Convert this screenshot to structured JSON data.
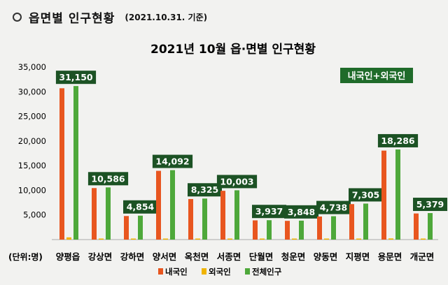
{
  "header": {
    "title": "읍면별 인구현황",
    "date": "(2021.10.31. 기준)"
  },
  "chart_data": {
    "type": "bar",
    "title": "2021년 10월 읍·면별 인구현황",
    "badge": "내국인+외국인",
    "unit_label": "(단위:명)",
    "categories": [
      "양평읍",
      "강상면",
      "강하면",
      "양서면",
      "옥천면",
      "서종면",
      "단월면",
      "청운면",
      "양동면",
      "지평면",
      "용문면",
      "개군면"
    ],
    "series": [
      {
        "name": "내국인",
        "color": "#e8561f",
        "values": [
          30700,
          10450,
          4780,
          13950,
          8230,
          9900,
          3900,
          3800,
          4680,
          7200,
          18050,
          5300
        ]
      },
      {
        "name": "외국인",
        "color": "#f0b400",
        "values": [
          450,
          136,
          74,
          142,
          95,
          103,
          37,
          48,
          58,
          105,
          236,
          79
        ]
      },
      {
        "name": "전체인구",
        "color": "#4ea83a",
        "values": [
          31150,
          10586,
          4854,
          14092,
          8325,
          10003,
          3937,
          3848,
          4738,
          7305,
          18286,
          5379
        ]
      }
    ],
    "data_labels": [
      "31,150",
      "10,586",
      "4,854",
      "14,092",
      "8,325",
      "10,003",
      "3,937",
      "3,848",
      "4,738",
      "7,305",
      "18,286",
      "5,379"
    ],
    "yticks": [
      5000,
      10000,
      15000,
      20000,
      25000,
      30000,
      35000
    ],
    "ytick_labels": [
      "5,000",
      "10,000",
      "15,000",
      "20,000",
      "25,000",
      "30,000",
      "35,000"
    ],
    "ylim": [
      0,
      35000
    ],
    "legend_position": "bottom",
    "badge_color": "#1f6b2a",
    "label_box_color": "#1c5224"
  }
}
